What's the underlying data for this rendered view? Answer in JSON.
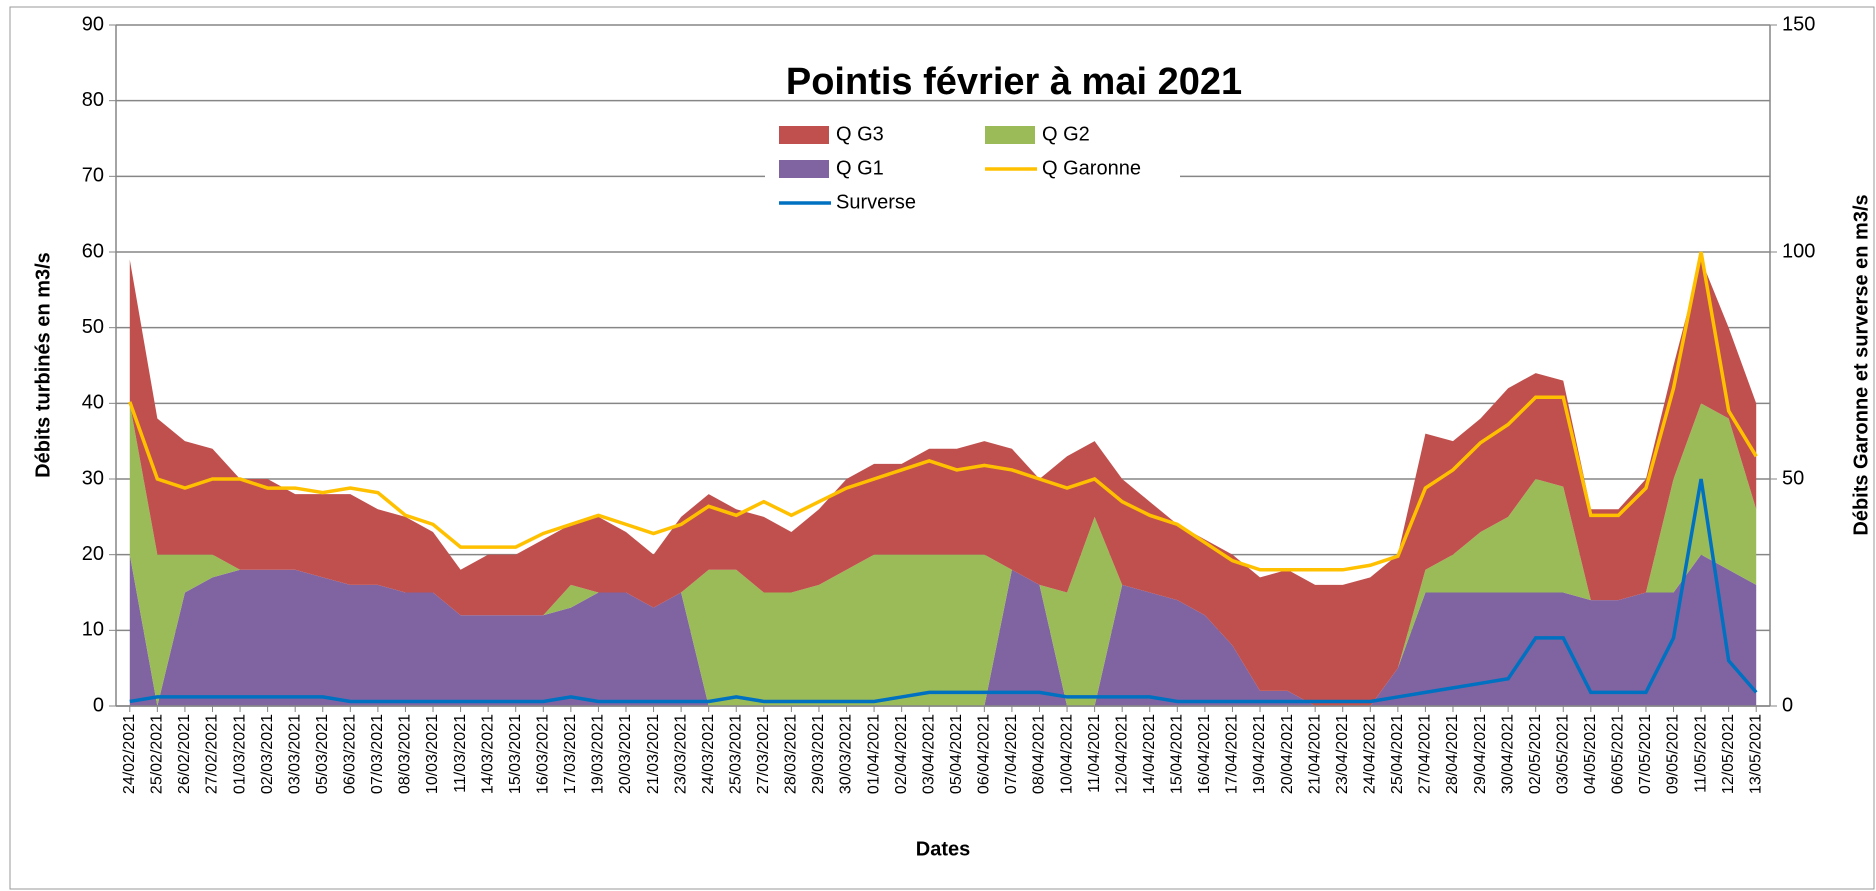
{
  "chart_data": {
    "type": "area",
    "title": "Pointis février à mai 2021",
    "x_label": "Dates",
    "y_label": "Débits turbinés en m3/s",
    "y2_label": "Débits Garonne et surverse en m3/s",
    "categories": [
      "24/02/2021",
      "25/02/2021",
      "26/02/2021",
      "27/02/2021",
      "01/03/2021",
      "02/03/2021",
      "03/03/2021",
      "05/03/2021",
      "06/03/2021",
      "07/03/2021",
      "08/03/2021",
      "10/03/2021",
      "11/03/2021",
      "14/03/2021",
      "15/03/2021",
      "16/03/2021",
      "17/03/2021",
      "19/03/2021",
      "20/03/2021",
      "21/03/2021",
      "23/03/2021",
      "24/03/2021",
      "25/03/2021",
      "27/03/2021",
      "28/03/2021",
      "29/03/2021",
      "30/03/2021",
      "01/04/2021",
      "02/04/2021",
      "03/04/2021",
      "05/04/2021",
      "06/04/2021",
      "07/04/2021",
      "08/04/2021",
      "10/04/2021",
      "11/04/2021",
      "12/04/2021",
      "14/04/2021",
      "15/04/2021",
      "16/04/2021",
      "17/04/2021",
      "19/04/2021",
      "20/04/2021",
      "21/04/2021",
      "23/04/2021",
      "24/04/2021",
      "25/04/2021",
      "27/04/2021",
      "28/04/2021",
      "29/04/2021",
      "30/04/2021",
      "02/05/2021",
      "03/05/2021",
      "04/05/2021",
      "06/05/2021",
      "07/05/2021",
      "09/05/2021",
      "11/05/2021",
      "12/05/2021",
      "13/05/2021"
    ],
    "series": [
      {
        "name": "Q G3",
        "type": "area",
        "color": "#c0504d",
        "values": [
          19,
          18,
          15,
          14,
          12,
          12,
          10,
          11,
          12,
          10,
          10,
          8,
          6,
          8,
          8,
          10,
          8,
          10,
          8,
          7,
          10,
          10,
          8,
          10,
          8,
          10,
          12,
          12,
          12,
          14,
          14,
          15,
          16,
          14,
          18,
          10,
          14,
          12,
          10,
          10,
          12,
          15,
          16,
          16,
          16,
          17,
          15,
          18,
          15,
          15,
          17,
          14,
          14,
          12,
          12,
          15,
          15,
          19,
          12,
          14
        ]
      },
      {
        "name": "Q G2",
        "type": "area",
        "color": "#9bbb59",
        "values": [
          20,
          20,
          5,
          3,
          0,
          0,
          0,
          0,
          0,
          0,
          0,
          0,
          0,
          0,
          0,
          0,
          3,
          0,
          0,
          0,
          0,
          18,
          18,
          15,
          15,
          16,
          18,
          20,
          20,
          20,
          20,
          20,
          0,
          0,
          15,
          25,
          0,
          0,
          0,
          0,
          0,
          0,
          0,
          0,
          0,
          0,
          0,
          3,
          5,
          8,
          10,
          15,
          14,
          0,
          0,
          0,
          15,
          20,
          20,
          10
        ]
      },
      {
        "name": "Q G1",
        "type": "area",
        "color": "#8064a2",
        "values": [
          20,
          0,
          15,
          17,
          18,
          18,
          18,
          17,
          16,
          16,
          15,
          15,
          12,
          12,
          12,
          12,
          13,
          15,
          15,
          13,
          15,
          0,
          0,
          0,
          0,
          0,
          0,
          0,
          0,
          0,
          0,
          0,
          18,
          16,
          0,
          0,
          16,
          15,
          14,
          12,
          8,
          2,
          2,
          0,
          0,
          0,
          5,
          15,
          15,
          15,
          15,
          15,
          15,
          14,
          14,
          15,
          15,
          20,
          18,
          16
        ]
      },
      {
        "name": "Q Garonne",
        "type": "line",
        "axis": "y2",
        "color": "#ffc000",
        "values": [
          67,
          50,
          48,
          50,
          50,
          48,
          48,
          47,
          48,
          47,
          42,
          40,
          35,
          35,
          35,
          38,
          40,
          42,
          40,
          38,
          40,
          44,
          42,
          45,
          42,
          45,
          48,
          50,
          52,
          54,
          52,
          53,
          52,
          50,
          48,
          50,
          45,
          42,
          40,
          36,
          32,
          30,
          30,
          30,
          30,
          31,
          33,
          48,
          52,
          58,
          62,
          68,
          68,
          42,
          42,
          48,
          70,
          100,
          65,
          55
        ]
      },
      {
        "name": "Surverse",
        "type": "line",
        "axis": "y2",
        "color": "#0070c0",
        "values": [
          1,
          2,
          2,
          2,
          2,
          2,
          2,
          2,
          1,
          1,
          1,
          1,
          1,
          1,
          1,
          1,
          2,
          1,
          1,
          1,
          1,
          1,
          2,
          1,
          1,
          1,
          1,
          1,
          2,
          3,
          3,
          3,
          3,
          3,
          2,
          2,
          2,
          2,
          1,
          1,
          1,
          1,
          1,
          1,
          1,
          1,
          2,
          3,
          4,
          5,
          6,
          15,
          15,
          3,
          3,
          3,
          15,
          50,
          10,
          3
        ]
      }
    ],
    "ylim": [
      0,
      90
    ],
    "yticks": [
      0,
      10,
      20,
      30,
      40,
      50,
      60,
      70,
      80,
      90
    ],
    "y2lim": [
      0,
      150
    ],
    "y2ticks": [
      0,
      50,
      100,
      150
    ],
    "grid": true
  }
}
